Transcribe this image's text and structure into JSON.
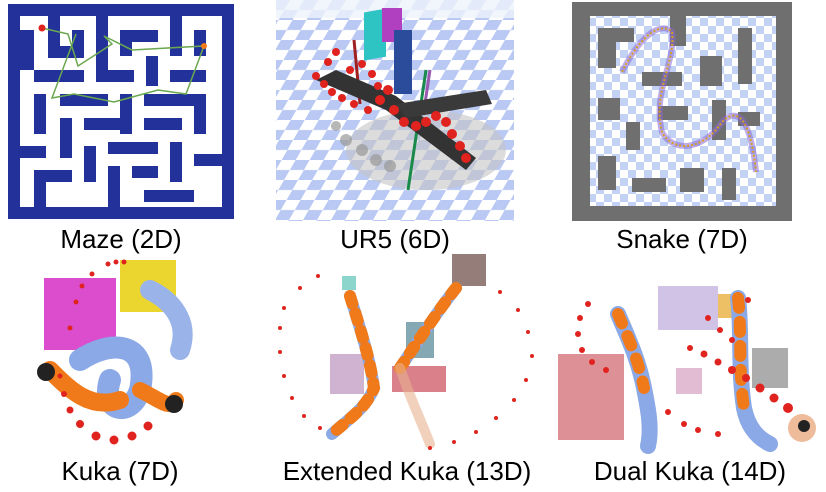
{
  "panels": [
    {
      "caption": "Maze (2D)"
    },
    {
      "caption": "UR5 (6D)"
    },
    {
      "caption": "Snake (7D)"
    },
    {
      "caption": "Kuka (7D)"
    },
    {
      "caption": "Extended Kuka (13D)"
    },
    {
      "caption": "Dual Kuka (14D)"
    }
  ],
  "colors": {
    "maze_wall": "#22329a",
    "maze_path": "#6aa84f",
    "waypoint": "#e0231f",
    "checker_light": "#c8d6f7",
    "checker_dark": "#ffffff",
    "robot_blue": "#8aa9e6",
    "robot_orange": "#f07a1a",
    "snake_wall": "#707070"
  }
}
